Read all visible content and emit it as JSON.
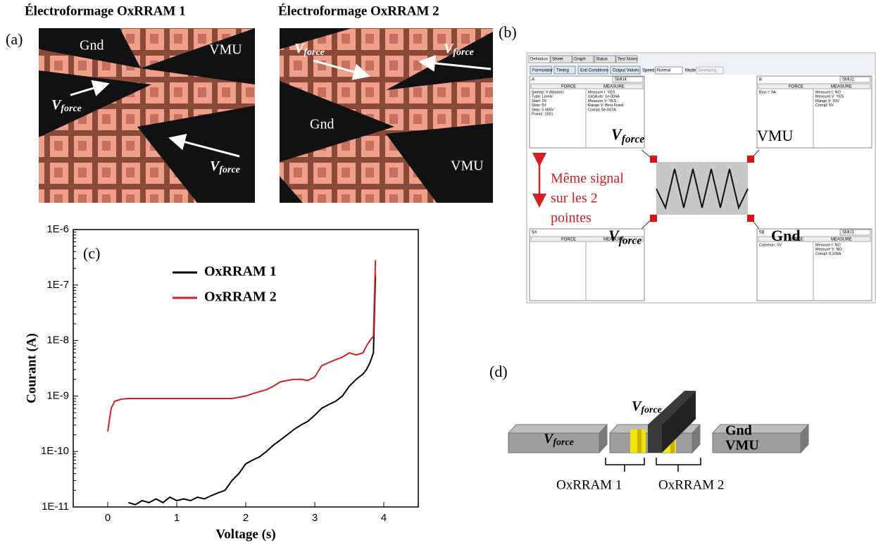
{
  "panel_a": {
    "label": "(a)",
    "images": [
      {
        "title": "Électroformage OxRRAM 1",
        "labels": [
          "Gnd",
          "VMU",
          {
            "symbol": "V",
            "subscript": "force"
          },
          {
            "symbol": "V",
            "subscript": "force"
          }
        ]
      },
      {
        "title": "Électroformage OxRRAM 2",
        "labels": [
          {
            "symbol": "V",
            "subscript": "force"
          },
          {
            "symbol": "V",
            "subscript": "force"
          },
          "Gnd",
          "VMU"
        ]
      }
    ]
  },
  "panel_b": {
    "label": "(b)",
    "screenshot": {
      "tabs": [
        "Definition",
        "Sheet",
        "Graph",
        "Status",
        "Test Notes"
      ],
      "buttons": [
        "Formulator",
        "Timing",
        "Exit Conditions",
        "Output Values"
      ],
      "speed_label": "Speed:",
      "speed": "Normal",
      "mode_label": "Mode:",
      "mode": "Sweeping",
      "panels": [
        {
          "name": "A",
          "unit": "SMU4",
          "force_header": "FORCE",
          "measure_header": "MEASURE",
          "force": [
            "Sweep: V (Master)",
            "Type: Linear",
            "Start: 0V",
            "Stop: 5V",
            "Step: 0.005V",
            "Points: 1001"
          ],
          "measure": [
            "Measure I: YES",
            "I(at)Auto: 1e-006A",
            "Measure V: YES",
            "Range V: Best Fixed",
            "Compl: 5e-007A"
          ]
        },
        {
          "name": "B",
          "unit": "SMU2",
          "force_header": "FORCE",
          "measure_header": "MEASURE",
          "force": [
            "Bias I: 0A"
          ],
          "measure": [
            "Measure I: NO",
            "Measure V: YES",
            "Range V: 20V",
            "Compl: 5V"
          ]
        },
        {
          "name": "5A",
          "force_header": "FORCE",
          "measure_header": "MEASURE"
        },
        {
          "name": "5B",
          "unit": "SMU3",
          "force_header": "FORCE",
          "measure_header": "MEASURE",
          "force": [
            "Common: 0V"
          ],
          "measure": [
            "Measure I: NO",
            "Measure V: NO",
            "Compl: 0.105A"
          ]
        }
      ]
    },
    "overlays": {
      "force_top": {
        "symbol": "V",
        "subscript": "force"
      },
      "vmu": "VMU",
      "note": [
        "Même signal",
        "sur les 2",
        "pointes"
      ],
      "force_bottom": {
        "symbol": "V",
        "subscript": "force"
      },
      "gnd": "Gnd"
    }
  },
  "chart_data": {
    "type": "line",
    "panel_label": "(c)",
    "x_label": "Voltage (s)",
    "y_label": "Courant (A)",
    "y_scale": "log",
    "xlim": [
      -0.5,
      4.5
    ],
    "xticks": [
      0,
      1,
      2,
      3,
      4
    ],
    "ylim": [
      1e-11,
      1e-06
    ],
    "yticks": [
      {
        "value": 1e-11,
        "label": "1E-11"
      },
      {
        "value": 1e-10,
        "label": "1E-10"
      },
      {
        "value": 1e-09,
        "label": "1E-9"
      },
      {
        "value": 1e-08,
        "label": "1E-8"
      },
      {
        "value": 1e-07,
        "label": "1E-7"
      },
      {
        "value": 1e-06,
        "label": "1E-6"
      }
    ],
    "x": [
      0,
      0.05,
      0.1,
      0.2,
      0.3,
      0.4,
      0.5,
      0.6,
      0.7,
      0.8,
      0.9,
      1.0,
      1.1,
      1.2,
      1.3,
      1.4,
      1.5,
      1.6,
      1.7,
      1.8,
      1.9,
      2.0,
      2.1,
      2.2,
      2.3,
      2.4,
      2.5,
      2.6,
      2.7,
      2.8,
      2.9,
      3.0,
      3.1,
      3.2,
      3.3,
      3.4,
      3.5,
      3.6,
      3.7,
      3.75,
      3.8,
      3.85,
      3.88
    ],
    "series": [
      {
        "name": "OxRRAM 1",
        "color": "#000000",
        "values": [
          null,
          null,
          null,
          null,
          1.2e-11,
          1.1e-11,
          1.3e-11,
          1.2e-11,
          1.4e-11,
          1.2e-11,
          1.5e-11,
          1.3e-11,
          1.4e-11,
          1.3e-11,
          1.5e-11,
          1.4e-11,
          1.6e-11,
          1.8e-11,
          2e-11,
          3e-11,
          4e-11,
          6e-11,
          7e-11,
          8e-11,
          1e-10,
          1.3e-10,
          1.6e-10,
          2e-10,
          2.5e-10,
          3e-10,
          3.5e-10,
          4.5e-10,
          6e-10,
          7e-10,
          8e-10,
          1e-09,
          1.5e-09,
          2e-09,
          2.5e-09,
          3e-09,
          4e-09,
          6e-09,
          1.5e-07
        ]
      },
      {
        "name": "OxRRAM 2",
        "color": "#d42020",
        "values": [
          2.3e-10,
          6e-10,
          8e-10,
          8.8e-10,
          9e-10,
          9e-10,
          9e-10,
          9e-10,
          9e-10,
          9e-10,
          9e-10,
          9e-10,
          9e-10,
          9e-10,
          9e-10,
          9e-10,
          9e-10,
          9e-10,
          9e-10,
          9e-10,
          9.5e-10,
          1e-09,
          1.1e-09,
          1.2e-09,
          1.3e-09,
          1.5e-09,
          1.8e-09,
          1.9e-09,
          2e-09,
          2e-09,
          1.9e-09,
          2.2e-09,
          3.5e-09,
          4e-09,
          4.5e-09,
          5e-09,
          6e-09,
          5.5e-09,
          6e-09,
          8e-09,
          1e-08,
          1.2e-08,
          2.8e-07
        ]
      }
    ]
  },
  "panel_d": {
    "label": "(d)",
    "left": {
      "symbol": "V",
      "subscript": "force"
    },
    "top": {
      "symbol": "V",
      "subscript": "force"
    },
    "right": [
      "Gnd",
      "VMU"
    ],
    "devices": [
      "OxRRAM 1",
      "OxRRAM 2"
    ]
  }
}
